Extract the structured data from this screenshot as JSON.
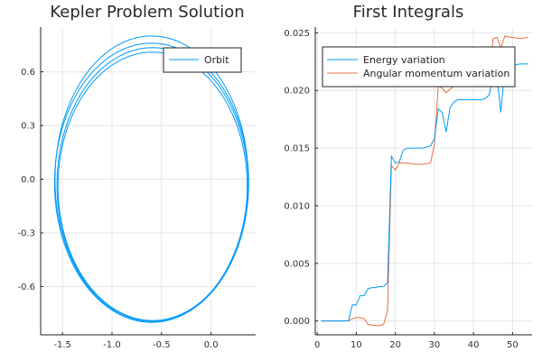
{
  "colors": {
    "series1": "#009af9",
    "series2": "#e26f46",
    "grid": "#e6e6e6",
    "axis": "#222222"
  },
  "chart_data": [
    {
      "type": "line",
      "title": "Kepler Problem Solution",
      "xlabel": "",
      "ylabel": "",
      "xlim": [
        -1.72,
        0.45
      ],
      "ylim": [
        -0.87,
        0.85
      ],
      "xticks": [
        -1.5,
        -1.0,
        -0.5,
        0.0
      ],
      "xtick_labels": [
        "-1.5",
        "-1.0",
        "-0.5",
        "0.0"
      ],
      "yticks": [
        -0.6,
        -0.3,
        0.0,
        0.3,
        0.6
      ],
      "ytick_labels": [
        "-0.6",
        "-0.3",
        "0.0",
        "0.3",
        "0.6"
      ],
      "grid": true,
      "legend_position": "top-right",
      "series": [
        {
          "name": "Orbit",
          "color": "#009af9",
          "orbits": [
            {
              "cx": -0.6,
              "cy": 0.0,
              "a": 0.975,
              "b": 0.8
            },
            {
              "cx": -0.6,
              "cy": -0.02,
              "a": 0.98,
              "b": 0.78
            },
            {
              "cx": -0.59,
              "cy": -0.03,
              "a": 0.965,
              "b": 0.765
            },
            {
              "cx": -0.59,
              "cy": -0.04,
              "a": 0.955,
              "b": 0.75
            }
          ]
        }
      ]
    },
    {
      "type": "line",
      "title": "First Integrals",
      "xlabel": "",
      "ylabel": "",
      "xlim": [
        -0.5,
        55
      ],
      "ylim": [
        -0.0012,
        0.0255
      ],
      "xticks": [
        0,
        10,
        20,
        30,
        40,
        50
      ],
      "xtick_labels": [
        "0",
        "10",
        "20",
        "30",
        "40",
        "50"
      ],
      "yticks": [
        0.0,
        0.005,
        0.01,
        0.015,
        0.02,
        0.025
      ],
      "ytick_labels": [
        "0.000",
        "0.005",
        "0.010",
        "0.015",
        "0.020",
        "0.025"
      ],
      "grid": true,
      "legend_position": "top-left",
      "series": [
        {
          "name": "Energy variation",
          "color": "#009af9",
          "x": [
            1,
            8,
            9,
            10,
            11,
            12,
            13,
            14,
            15,
            16,
            17,
            18,
            19,
            20,
            21,
            22,
            23,
            25,
            27,
            28,
            29,
            30,
            31,
            32,
            33,
            34,
            35,
            36,
            37,
            39,
            42,
            43,
            44,
            45,
            46,
            47,
            48,
            50,
            52,
            54
          ],
          "y": [
            0.0,
            0.0,
            0.0014,
            0.0014,
            0.0022,
            0.0022,
            0.0028,
            0.0029,
            0.0029,
            0.003,
            0.003,
            0.0033,
            0.0143,
            0.0137,
            0.0138,
            0.0148,
            0.015,
            0.015,
            0.015,
            0.0151,
            0.0152,
            0.0158,
            0.0184,
            0.0181,
            0.0164,
            0.0185,
            0.019,
            0.0192,
            0.0192,
            0.0192,
            0.0192,
            0.0193,
            0.0196,
            0.0212,
            0.0213,
            0.0181,
            0.0218,
            0.0222,
            0.0223,
            0.0223
          ]
        },
        {
          "name": "Angular momentum variation",
          "color": "#e26f46",
          "x": [
            1,
            8,
            9,
            10,
            11,
            12,
            13,
            15,
            16,
            17,
            18,
            19,
            20,
            21,
            22,
            23,
            25,
            27,
            29,
            30,
            31,
            32,
            33,
            35,
            36,
            37,
            39,
            42,
            43,
            44,
            45,
            46,
            47,
            48,
            50,
            52,
            54
          ],
          "y": [
            0.0,
            0.0,
            0.0002,
            0.0003,
            0.0003,
            0.0002,
            -0.0003,
            -0.0004,
            -0.0004,
            -0.0003,
            0.0009,
            0.0135,
            0.0131,
            0.0137,
            0.0137,
            0.0137,
            0.0136,
            0.0136,
            0.0137,
            0.0153,
            0.0204,
            0.0202,
            0.0198,
            0.0204,
            0.0204,
            0.0205,
            0.0204,
            0.0204,
            0.0203,
            0.0204,
            0.0245,
            0.0246,
            0.0237,
            0.0247,
            0.0246,
            0.0245,
            0.0246
          ]
        }
      ]
    }
  ]
}
